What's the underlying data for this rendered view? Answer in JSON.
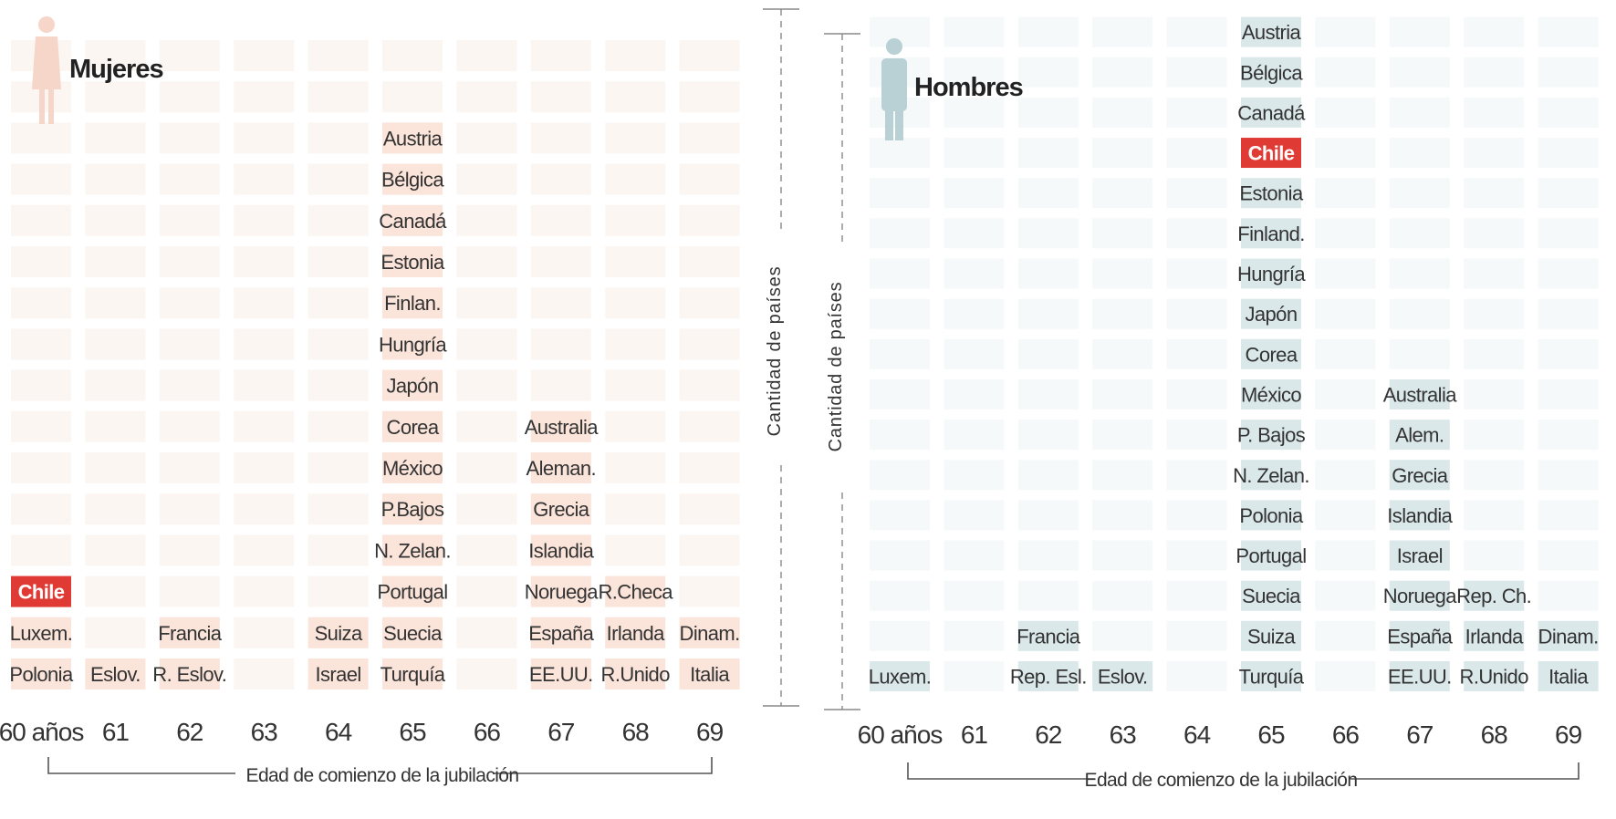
{
  "colors": {
    "mujeres_bar": "#fbe4da",
    "mujeres_grid": "#fbf6f2",
    "mujeres_icon": "#f6d6c9",
    "hombres_bar": "#dbe8ea",
    "hombres_grid": "#f5f9fa",
    "hombres_icon": "#b9d0d4",
    "highlight": "#e03a35"
  },
  "chart_data": [
    {
      "type": "table",
      "title": "Mujeres",
      "icon": "woman-icon",
      "xlabel": "Edad de comienzo de la jubilación",
      "ylabel": "Cantidad de países",
      "x_tick_labels": [
        "60 años",
        "61",
        "62",
        "63",
        "64",
        "65",
        "66",
        "67",
        "68",
        "69"
      ],
      "x": [
        60,
        61,
        62,
        63,
        64,
        65,
        66,
        67,
        68,
        69
      ],
      "highlight": "Chile",
      "counts": [
        3,
        1,
        2,
        0,
        2,
        14,
        0,
        7,
        3,
        2
      ],
      "columns": [
        {
          "age": 60,
          "countries": [
            "Polonia",
            "Luxem.",
            "Chile"
          ]
        },
        {
          "age": 61,
          "countries": [
            "Eslov."
          ]
        },
        {
          "age": 62,
          "countries": [
            "R. Eslov.",
            "Francia"
          ]
        },
        {
          "age": 63,
          "countries": []
        },
        {
          "age": 64,
          "countries": [
            "Israel",
            "Suiza"
          ]
        },
        {
          "age": 65,
          "countries": [
            "Turquía",
            "Suecia",
            "Portugal",
            "N. Zelan.",
            "P.Bajos",
            "México",
            "Corea",
            "Japón",
            "Hungría",
            "Finlan.",
            "Estonia",
            "Canadá",
            "Bélgica",
            "Austria"
          ]
        },
        {
          "age": 66,
          "countries": []
        },
        {
          "age": 67,
          "countries": [
            "EE.UU.",
            "España",
            "Noruega",
            "Islandia",
            "Grecia",
            "Aleman.",
            "Australia"
          ]
        },
        {
          "age": 68,
          "countries": [
            "R.Unido",
            "Irlanda",
            "R.Checa"
          ]
        },
        {
          "age": 69,
          "countries": [
            "Italia",
            "Dinam."
          ]
        }
      ]
    },
    {
      "type": "table",
      "title": "Hombres",
      "icon": "man-icon",
      "xlabel": "Edad de comienzo de la jubilación",
      "ylabel": "Cantidad de países",
      "x_tick_labels": [
        "60 años",
        "61",
        "62",
        "63",
        "64",
        "65",
        "66",
        "67",
        "68",
        "69"
      ],
      "x": [
        60,
        61,
        62,
        63,
        64,
        65,
        66,
        67,
        68,
        69
      ],
      "highlight": "Chile",
      "counts": [
        1,
        0,
        2,
        1,
        0,
        17,
        0,
        8,
        3,
        2
      ],
      "columns": [
        {
          "age": 60,
          "countries": [
            "Luxem."
          ]
        },
        {
          "age": 61,
          "countries": []
        },
        {
          "age": 62,
          "countries": [
            "Rep. Esl.",
            "Francia"
          ]
        },
        {
          "age": 63,
          "countries": [
            "Eslov."
          ]
        },
        {
          "age": 64,
          "countries": []
        },
        {
          "age": 65,
          "countries": [
            "Turquía",
            "Suiza",
            "Suecia",
            "Portugal",
            "Polonia",
            "N. Zelan.",
            "P. Bajos",
            "México",
            "Corea",
            "Japón",
            "Hungría",
            "Finland.",
            "Estonia",
            "Chile",
            "Canadá",
            "Bélgica",
            "Austria"
          ]
        },
        {
          "age": 66,
          "countries": []
        },
        {
          "age": 67,
          "countries": [
            "EE.UU.",
            "España",
            "Noruega",
            "Israel",
            "Islandia",
            "Grecia",
            "Alem.",
            "Australia"
          ]
        },
        {
          "age": 68,
          "countries": [
            "R.Unido",
            "Irlanda",
            "Rep. Ch."
          ]
        },
        {
          "age": 69,
          "countries": [
            "Italia",
            "Dinam."
          ]
        }
      ]
    }
  ]
}
